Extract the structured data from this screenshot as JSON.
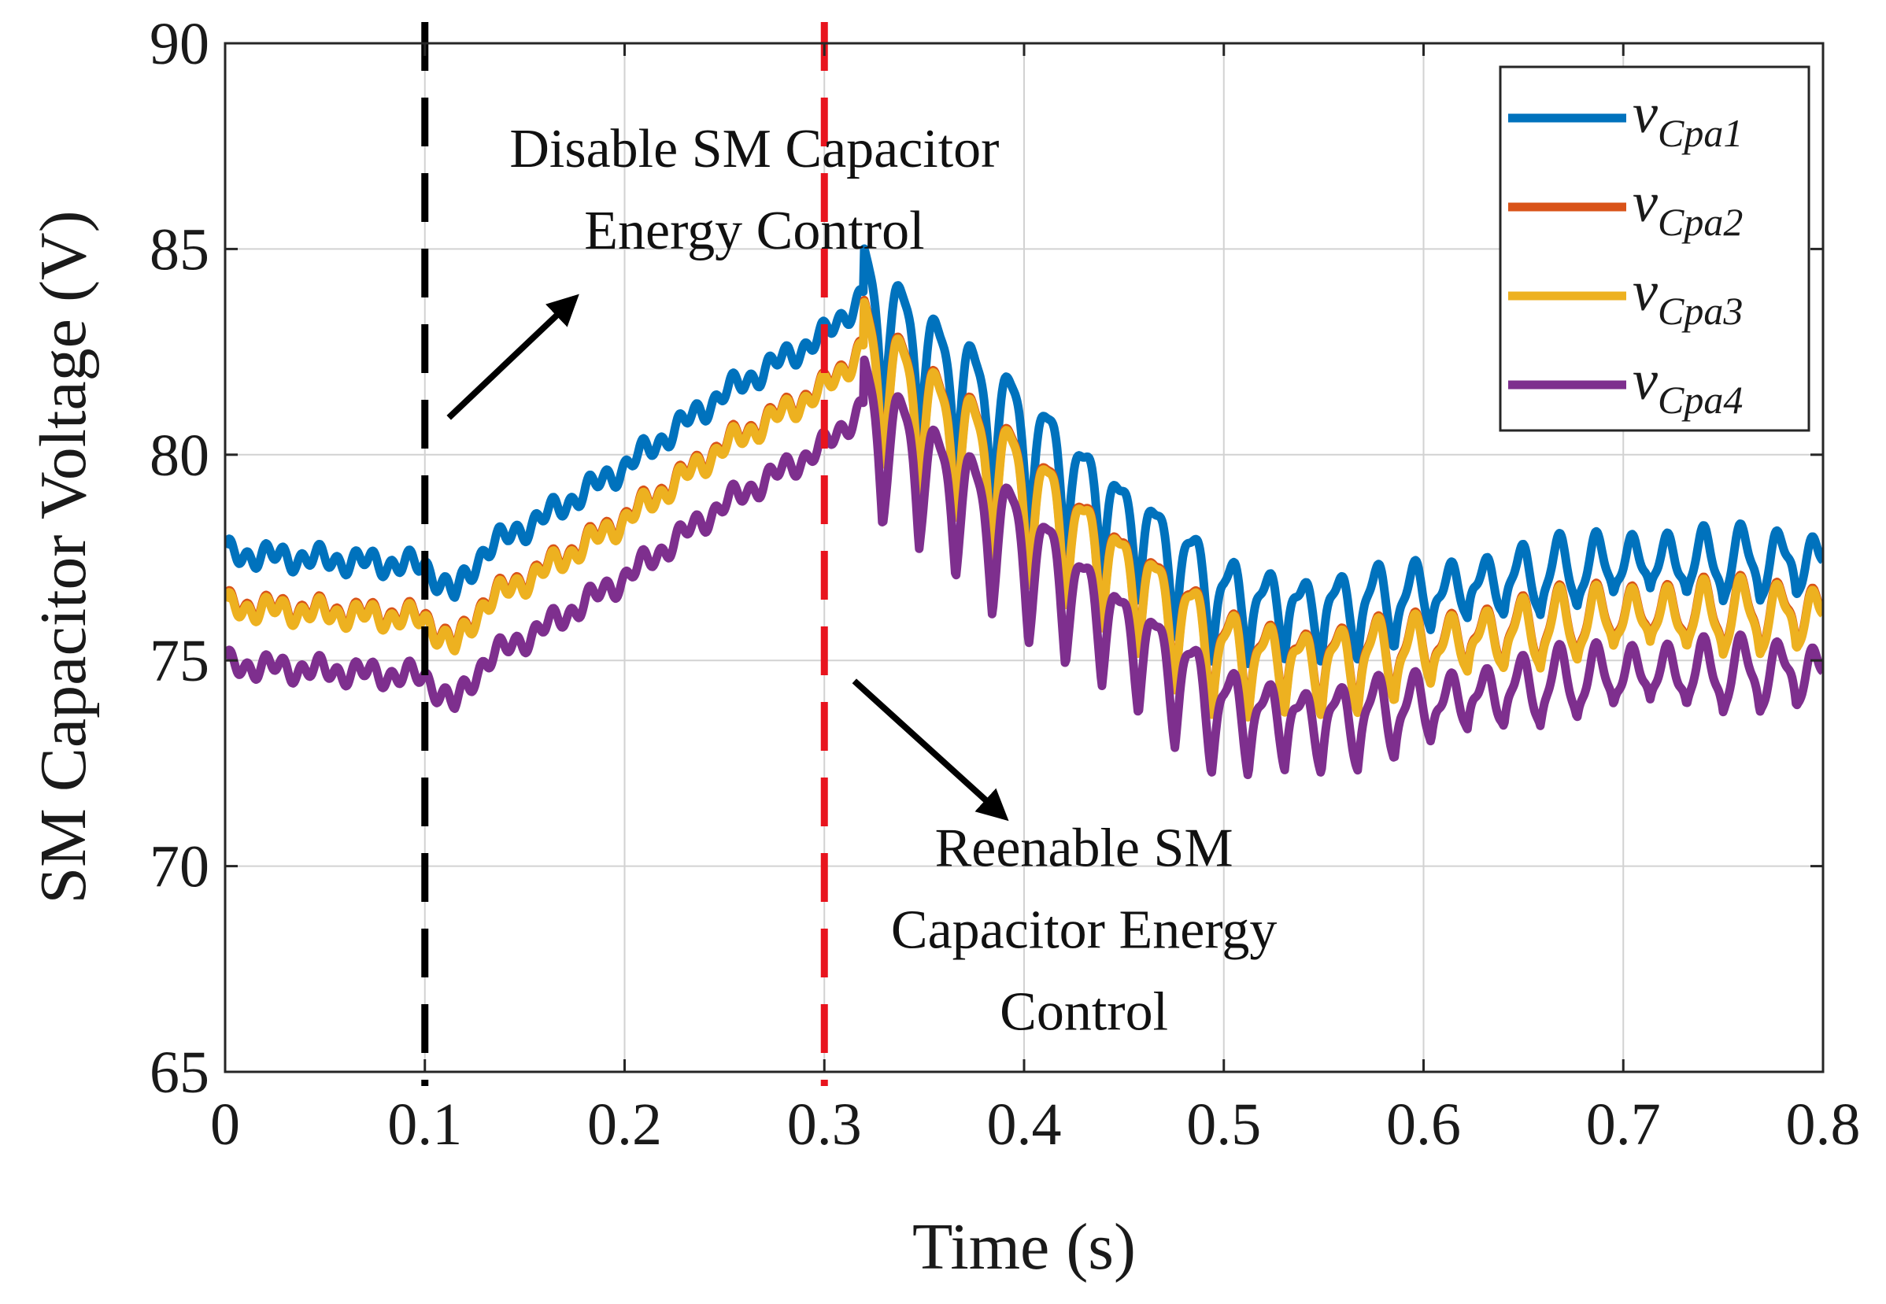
{
  "chart_data": {
    "type": "line",
    "title": "",
    "xlabel": "Time (s)",
    "ylabel": "SM Capacitor Voltage (V)",
    "xlim": [
      0,
      0.8
    ],
    "ylim": [
      65,
      90
    ],
    "xticks": [
      "0",
      "0.1",
      "0.2",
      "0.3",
      "0.4",
      "0.5",
      "0.6",
      "0.7",
      "0.8"
    ],
    "yticks": [
      "65",
      "70",
      "75",
      "80",
      "85",
      "90"
    ],
    "grid": true,
    "legend_position": "top-right",
    "series": [
      {
        "name": "v_Cpa1",
        "label_main": "v",
        "label_sub": "Cpa1",
        "color": "#0072BD",
        "offset": 1.3,
        "amplitude": 0.55,
        "envelope": [
          [
            0,
            76.3
          ],
          [
            0.1,
            76.0
          ],
          [
            0.115,
            75.3
          ],
          [
            0.13,
            76.4
          ],
          [
            0.16,
            77.2
          ],
          [
            0.2,
            78.4
          ],
          [
            0.25,
            80.2
          ],
          [
            0.3,
            81.6
          ],
          [
            0.32,
            82.6
          ],
          [
            0.4,
            79.3
          ],
          [
            0.5,
            75.3
          ],
          [
            0.55,
            75.0
          ],
          [
            0.6,
            75.4
          ],
          [
            0.7,
            76.2
          ],
          [
            0.8,
            76.2
          ]
        ]
      },
      {
        "name": "v_Cpa2",
        "label_main": "v",
        "label_sub": "Cpa2",
        "color": "#D95319",
        "offset": 0.05,
        "amplitude": 0.55,
        "envelope": [
          [
            0,
            76.3
          ],
          [
            0.1,
            76.0
          ],
          [
            0.115,
            75.3
          ],
          [
            0.13,
            76.4
          ],
          [
            0.16,
            77.2
          ],
          [
            0.2,
            78.4
          ],
          [
            0.25,
            80.2
          ],
          [
            0.3,
            81.6
          ],
          [
            0.32,
            82.6
          ],
          [
            0.4,
            79.3
          ],
          [
            0.5,
            75.3
          ],
          [
            0.55,
            75.0
          ],
          [
            0.6,
            75.4
          ],
          [
            0.7,
            76.2
          ],
          [
            0.8,
            76.2
          ]
        ]
      },
      {
        "name": "v_Cpa3",
        "label_main": "v",
        "label_sub": "Cpa3",
        "color": "#EDB120",
        "offset": 0.0,
        "amplitude": 0.55,
        "envelope": [
          [
            0,
            76.3
          ],
          [
            0.1,
            76.0
          ],
          [
            0.115,
            75.3
          ],
          [
            0.13,
            76.4
          ],
          [
            0.16,
            77.2
          ],
          [
            0.2,
            78.4
          ],
          [
            0.25,
            80.2
          ],
          [
            0.3,
            81.6
          ],
          [
            0.32,
            82.6
          ],
          [
            0.4,
            79.3
          ],
          [
            0.5,
            75.3
          ],
          [
            0.55,
            75.0
          ],
          [
            0.6,
            75.4
          ],
          [
            0.7,
            76.2
          ],
          [
            0.8,
            76.2
          ]
        ]
      },
      {
        "name": "v_Cpa4",
        "label_main": "v",
        "label_sub": "Cpa4",
        "color": "#7E2F8E",
        "offset": -1.4,
        "amplitude": 0.6,
        "envelope": [
          [
            0,
            76.3
          ],
          [
            0.1,
            76.0
          ],
          [
            0.115,
            75.3
          ],
          [
            0.13,
            76.4
          ],
          [
            0.16,
            77.2
          ],
          [
            0.2,
            78.4
          ],
          [
            0.25,
            80.2
          ],
          [
            0.3,
            81.6
          ],
          [
            0.32,
            82.6
          ],
          [
            0.4,
            79.3
          ],
          [
            0.5,
            75.3
          ],
          [
            0.55,
            75.0
          ],
          [
            0.6,
            75.4
          ],
          [
            0.7,
            76.2
          ],
          [
            0.8,
            76.2
          ]
        ]
      }
    ],
    "oscillation": {
      "start_time": 0.32,
      "period": 0.0183,
      "amplitude_envelope": [
        [
          0.32,
          3.6
        ],
        [
          0.4,
          3.0
        ],
        [
          0.5,
          2.3
        ],
        [
          0.6,
          1.65
        ],
        [
          0.7,
          1.6
        ],
        [
          0.8,
          1.6
        ]
      ]
    },
    "vlines": [
      {
        "x": 0.1,
        "color": "#000000",
        "style": "dashed"
      },
      {
        "x": 0.3,
        "color": "#E8141E",
        "style": "dashed"
      }
    ],
    "annotations": [
      {
        "lines": [
          "Disable SM Capacitor",
          "Energy Control"
        ],
        "x": 0.265,
        "y": 87.0,
        "arrow_from": [
          0.112,
          80.9
        ],
        "arrow_to": [
          0.175,
          83.8
        ]
      },
      {
        "lines": [
          "Reenable SM",
          "Capacitor Energy",
          "Control"
        ],
        "x": 0.43,
        "y": 70.0,
        "arrow_from": [
          0.315,
          74.5
        ],
        "arrow_to": [
          0.39,
          71.2
        ]
      }
    ]
  }
}
